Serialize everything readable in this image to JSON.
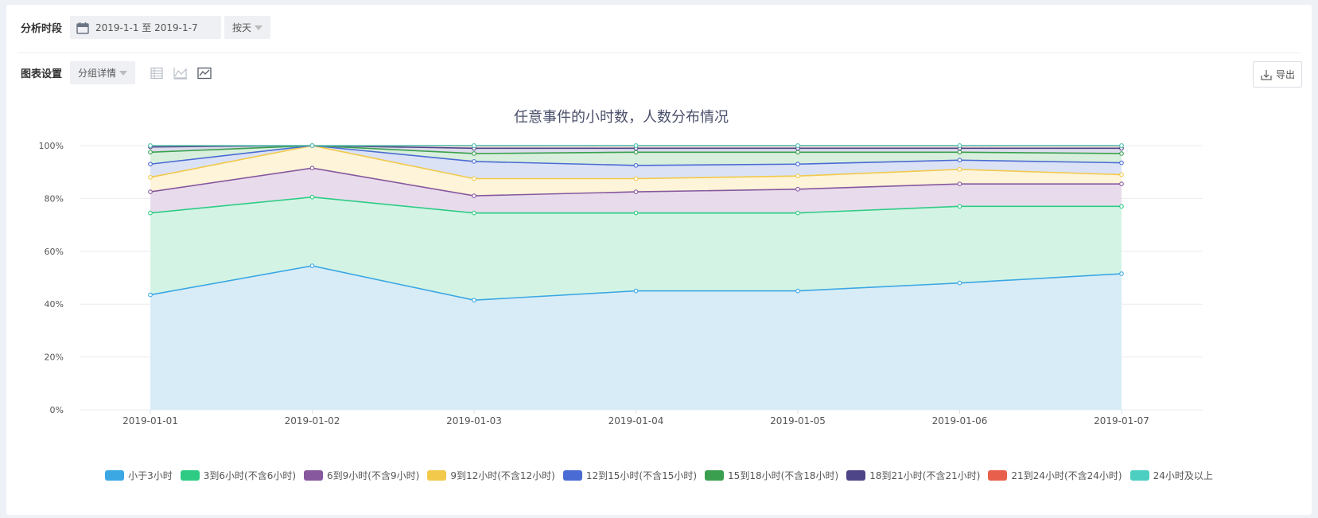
{
  "toolbar": {
    "period_label": "分析时段",
    "date_range": "2019-1-1 至 2019-1-7",
    "granularity": "按天",
    "chart_settings_label": "图表设置",
    "group_mode": "分组详情",
    "export_label": "导出"
  },
  "chart_data": {
    "type": "area",
    "stacked": true,
    "title": "任意事件的小时数，人数分布情况",
    "x": [
      "2019-01-01",
      "2019-01-02",
      "2019-01-03",
      "2019-01-04",
      "2019-01-05",
      "2019-01-06",
      "2019-01-07"
    ],
    "y_ticks": [
      "0%",
      "20%",
      "40%",
      "60%",
      "80%",
      "100%"
    ],
    "ylim": [
      0,
      100
    ],
    "grid": true,
    "legend_position": "bottom",
    "series": [
      {
        "name": "小于3小时",
        "color": "#3ba7e3",
        "fill": "#d8ecf7",
        "values": [
          43.5,
          54.5,
          41.5,
          45,
          45,
          48,
          51.5
        ]
      },
      {
        "name": "3到6小时(不含6小时)",
        "color": "#2ecb85",
        "fill": "#d3f4e5",
        "values": [
          74.5,
          80.5,
          74.5,
          74.5,
          74.5,
          77,
          77
        ]
      },
      {
        "name": "6到9小时(不含9小时)",
        "color": "#87589e",
        "fill": "#e8dcec",
        "values": [
          82.5,
          91.5,
          81,
          82.5,
          83.5,
          85.5,
          85.5
        ]
      },
      {
        "name": "9到12小时(不含12小时)",
        "color": "#f2c94a",
        "fill": "#fdf4d9",
        "values": [
          88,
          100,
          87.5,
          87.5,
          88.5,
          91,
          89
        ]
      },
      {
        "name": "12到15小时(不含15小时)",
        "color": "#4a6bd3",
        "fill": "#dbe2f6",
        "values": [
          93,
          100,
          94,
          92.5,
          93,
          94.5,
          93.5
        ]
      },
      {
        "name": "15到18小时(不含18小时)",
        "color": "#3aa04f",
        "fill": "#d9efdd",
        "values": [
          97.5,
          100,
          97,
          97.5,
          97.5,
          97.5,
          97
        ]
      },
      {
        "name": "18到21小时(不含21小时)",
        "color": "#4e4488",
        "fill": "#dddbeb",
        "values": [
          99.5,
          100,
          99,
          99,
          99,
          99,
          99
        ]
      },
      {
        "name": "21到24小时(不含24小时)",
        "color": "#e8604b",
        "fill": "#fbe0db",
        "values": [
          100,
          100,
          100,
          100,
          100,
          100,
          100
        ]
      },
      {
        "name": "24小时及以上",
        "color": "#4ccfc1",
        "fill": "#d6f4f1",
        "values": [
          100,
          100,
          100,
          100,
          100,
          100,
          100
        ]
      }
    ]
  }
}
